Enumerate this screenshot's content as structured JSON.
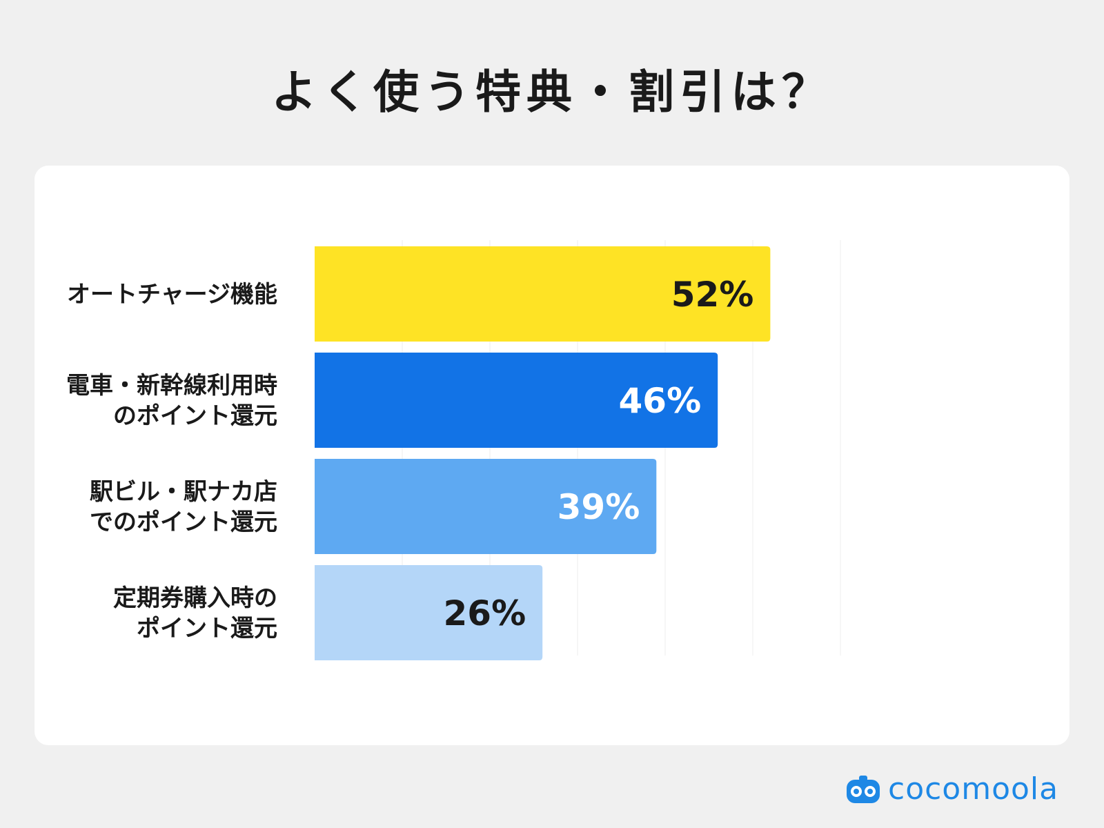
{
  "title": "よく使う特典・割引は？",
  "brand": {
    "name": "cocomoola",
    "color": "#1e88e5"
  },
  "chart_data": {
    "type": "bar",
    "orientation": "horizontal",
    "categories": [
      [
        "オートチャージ機能"
      ],
      [
        "電車・新幹線利用時",
        "のポイント還元"
      ],
      [
        "駅ビル・駅ナカ店",
        "でのポイント還元"
      ],
      [
        "定期券購入時の",
        "ポイント還元"
      ]
    ],
    "values": [
      52,
      46,
      39,
      26
    ],
    "value_labels": [
      "52%",
      "46%",
      "39%",
      "26%"
    ],
    "unit": "%",
    "xlim": [
      0,
      60
    ],
    "grid": true,
    "bar_colors": [
      "#fee325",
      "#1273e6",
      "#5ea9f2",
      "#b4d6f8"
    ],
    "label_colors": [
      "#1a1a1a",
      "#ffffff",
      "#ffffff",
      "#1a1a1a"
    ]
  }
}
